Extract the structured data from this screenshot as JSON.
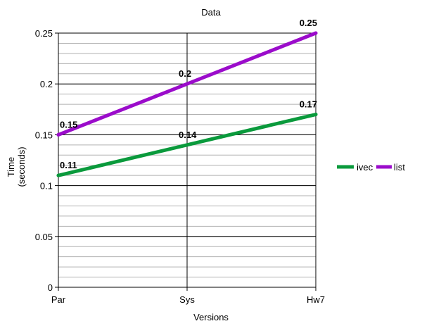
{
  "chart_data": {
    "type": "line",
    "title": "Data",
    "xlabel": "Versions",
    "ylabel_lines": [
      "Time",
      "(seconds)"
    ],
    "categories": [
      "Par",
      "Sys",
      "Hw7"
    ],
    "ylim": [
      0,
      0.25
    ],
    "yticks": [
      0,
      0.05,
      0.1,
      0.15,
      0.2,
      0.25
    ],
    "ytick_labels": [
      "0",
      "0.05",
      "0.1",
      "0.15",
      "0.2",
      "0.25"
    ],
    "minor_gridlines": true,
    "legend_position": "right",
    "series": [
      {
        "name": "ivec",
        "values": [
          0.11,
          0.14,
          0.17
        ],
        "labels": [
          "0.11",
          "0.14",
          "0.17"
        ],
        "color": "#0a9a3c"
      },
      {
        "name": "list",
        "values": [
          0.15,
          0.2,
          0.25
        ],
        "labels": [
          "0.15",
          "0.2",
          "0.25"
        ],
        "color": "#9b0ccb"
      }
    ]
  }
}
